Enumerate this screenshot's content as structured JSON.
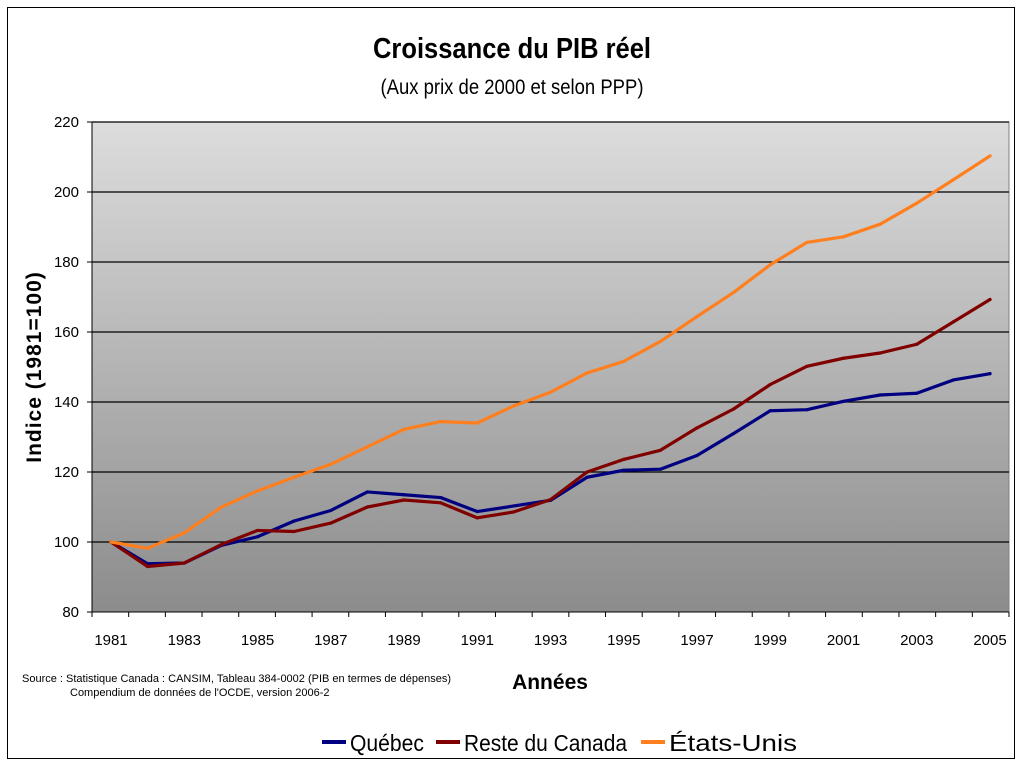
{
  "chart_data": {
    "type": "line",
    "title": "Croissance du PIB réel",
    "subtitle": "(Aux prix de 2000 et selon PPP)",
    "xlabel": "Années",
    "ylabel": "Indice (1981=100)",
    "xlim": [
      1981,
      2005
    ],
    "ylim": [
      80,
      220
    ],
    "yticks": [
      "80",
      "100",
      "120",
      "140",
      "160",
      "180",
      "200",
      "220"
    ],
    "xticks": [
      "1981",
      "1983",
      "1985",
      "1987",
      "1989",
      "1991",
      "1993",
      "1995",
      "1997",
      "1999",
      "2001",
      "2003",
      "2005"
    ],
    "grid": true,
    "legend_position": "bottom",
    "x": [
      1981,
      1982,
      1983,
      1984,
      1985,
      1986,
      1987,
      1988,
      1989,
      1990,
      1991,
      1992,
      1993,
      1994,
      1995,
      1996,
      1997,
      1998,
      1999,
      2000,
      2001,
      2002,
      2003,
      2004,
      2005
    ],
    "series": [
      {
        "name": "Québec",
        "color": "#000080",
        "values": [
          100,
          93.8,
          94.0,
          99.0,
          101.5,
          106.0,
          109.0,
          114.3,
          113.5,
          112.7,
          108.7,
          110.3,
          111.9,
          118.5,
          120.5,
          120.8,
          124.7,
          131.0,
          137.5,
          137.8,
          140.2,
          142.0,
          142.5,
          146.3,
          148.1
        ]
      },
      {
        "name": "Reste du Canada",
        "color": "#800000",
        "values": [
          100,
          93.0,
          94.0,
          99.2,
          103.3,
          103.0,
          105.4,
          110.0,
          112.0,
          111.2,
          106.9,
          108.6,
          112.1,
          120.0,
          123.6,
          126.2,
          132.6,
          138.0,
          145.0,
          150.2,
          152.5,
          154.0,
          156.5,
          162.9,
          169.3
        ]
      },
      {
        "name": "États-Unis",
        "color": "#FF7F1E",
        "values": [
          100,
          98.2,
          102.6,
          109.9,
          114.6,
          118.5,
          122.2,
          127.2,
          132.2,
          134.4,
          134.0,
          138.9,
          142.8,
          148.3,
          151.6,
          157.3,
          164.4,
          171.3,
          179.2,
          185.6,
          187.2,
          190.8,
          196.8,
          203.5,
          210.3
        ]
      }
    ]
  },
  "source": {
    "line1": "Source : Statistique Canada : CANSIM, Tableau 384-0002 (PIB en termes de dépenses)",
    "line2": "Compendium de données de l'OCDE, version 2006-2"
  },
  "colors": {
    "plot_bg_top": "#dddddd",
    "plot_bg_mid": "#b8b8b8",
    "plot_bg_bottom": "#8c8c8c",
    "gridline": "#000000"
  }
}
